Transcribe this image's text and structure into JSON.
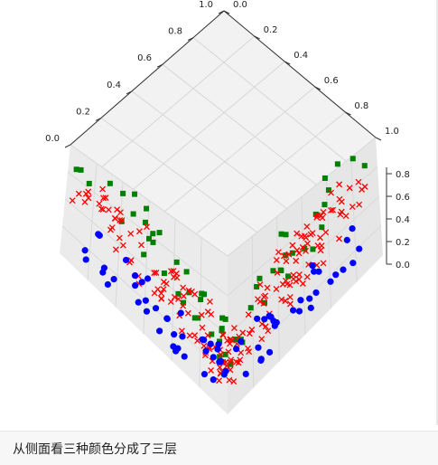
{
  "caption": "从侧面看三种颜色分成了三层",
  "chart_data": {
    "type": "scatter",
    "projection": "3d",
    "view": "looking down from above, rotated 45 degrees",
    "grid": true,
    "legend": "none",
    "axes": {
      "x": {
        "ticks": [
          "0.0",
          "0.2",
          "0.4",
          "0.6",
          "0.8",
          "1.0"
        ],
        "range": [
          0,
          1
        ]
      },
      "y": {
        "ticks": [
          "0.0",
          "0.2",
          "0.4",
          "0.6",
          "0.8",
          "1.0"
        ],
        "range": [
          0,
          1
        ]
      },
      "z": {
        "ticks": [
          "0.0",
          "0.2",
          "0.4",
          "0.6",
          "0.8"
        ],
        "range": [
          0,
          0.9
        ]
      }
    },
    "series": [
      {
        "color": "#008000",
        "marker": "square",
        "layer": "top",
        "count": 60
      },
      {
        "color": "#ff0000",
        "marker": "x",
        "layer": "middle",
        "count": 190
      },
      {
        "color": "#0000ff",
        "marker": "circle",
        "layer": "bottom",
        "count": 70
      }
    ]
  }
}
